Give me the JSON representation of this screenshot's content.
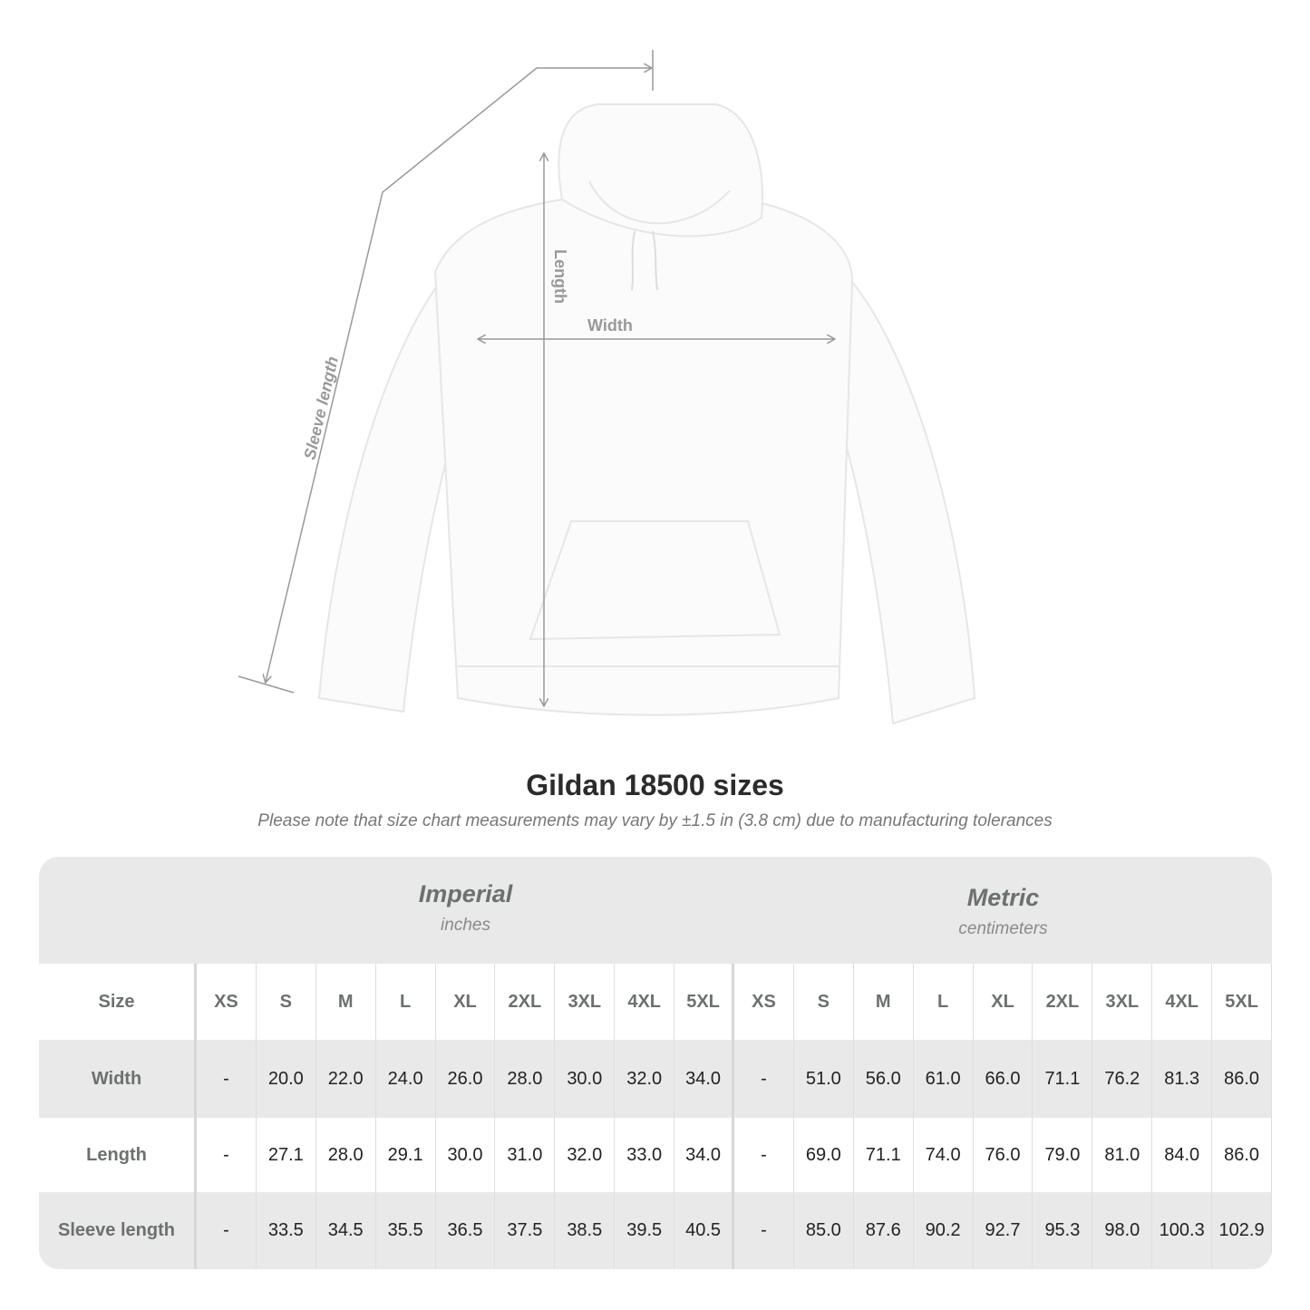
{
  "diagram": {
    "labels": {
      "length": "Length",
      "width": "Width",
      "sleeve": "Sleeve length"
    },
    "line_color": "#999999"
  },
  "title": "Gildan 18500 sizes",
  "subtitle": "Please note that size chart measurements may vary by ±1.5 in (3.8 cm) due to manufacturing tolerances",
  "table": {
    "imperial": {
      "name": "Imperial",
      "unit": "inches"
    },
    "metric": {
      "name": "Metric",
      "unit": "centimeters"
    },
    "size_label": "Size",
    "sizes": [
      "XS",
      "S",
      "M",
      "L",
      "XL",
      "2XL",
      "3XL",
      "4XL",
      "5XL"
    ],
    "rows": [
      {
        "label": "Width",
        "imperial": [
          "-",
          "20.0",
          "22.0",
          "24.0",
          "26.0",
          "28.0",
          "30.0",
          "32.0",
          "34.0"
        ],
        "metric": [
          "-",
          "51.0",
          "56.0",
          "61.0",
          "66.0",
          "71.1",
          "76.2",
          "81.3",
          "86.0"
        ]
      },
      {
        "label": "Length",
        "imperial": [
          "-",
          "27.1",
          "28.0",
          "29.1",
          "30.0",
          "31.0",
          "32.0",
          "33.0",
          "34.0"
        ],
        "metric": [
          "-",
          "69.0",
          "71.1",
          "74.0",
          "76.0",
          "79.0",
          "81.0",
          "84.0",
          "86.0"
        ]
      },
      {
        "label": "Sleeve length",
        "imperial": [
          "-",
          "33.5",
          "34.5",
          "35.5",
          "36.5",
          "37.5",
          "38.5",
          "39.5",
          "40.5"
        ],
        "metric": [
          "-",
          "85.0",
          "87.6",
          "90.2",
          "92.7",
          "95.3",
          "98.0",
          "100.3",
          "102.9"
        ]
      }
    ],
    "colors": {
      "band": "#e9e9e9",
      "header_text": "#6d7070"
    }
  }
}
